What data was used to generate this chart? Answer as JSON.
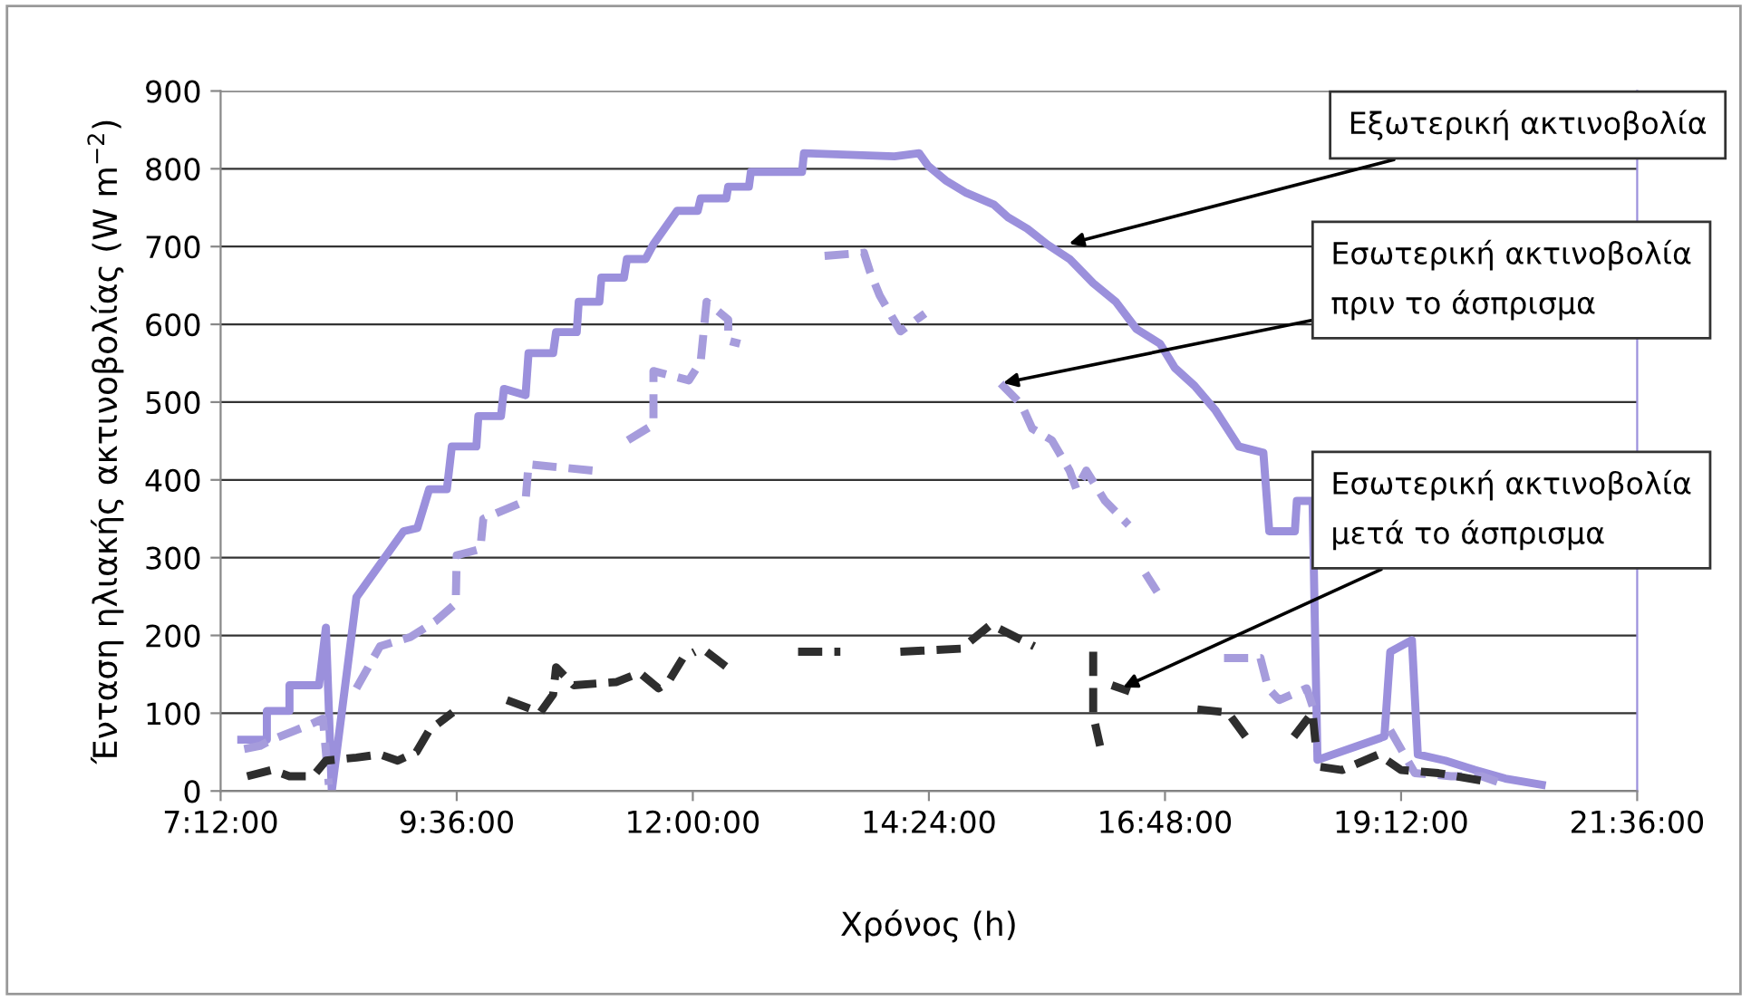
{
  "chart_data": {
    "type": "line",
    "xlabel": "Χρόνος (h)",
    "ylabel": "Ένταση ηλιακής ακτινοβολίας (W m$^{−2}$)",
    "xlim": [
      7.2,
      21.6
    ],
    "xticks": [
      {
        "value": 7.2,
        "label": "7:12:00"
      },
      {
        "value": 9.6,
        "label": "9:36:00"
      },
      {
        "value": 12.0,
        "label": "12:00:00"
      },
      {
        "value": 14.4,
        "label": "14:24:00"
      },
      {
        "value": 16.8,
        "label": "16:48:00"
      },
      {
        "value": 19.2,
        "label": "19:12:00"
      },
      {
        "value": 21.6,
        "label": "21:36:00"
      }
    ],
    "ylim": [
      0,
      900
    ],
    "yticks": [
      0,
      100,
      200,
      300,
      400,
      500,
      600,
      700,
      800,
      900
    ],
    "grid": "y",
    "legend": false,
    "series": [
      {
        "color": "#9b90dc",
        "line_style": "solid",
        "x": [
          7.41,
          7.67,
          7.67,
          7.9,
          7.9,
          8.2,
          8.27,
          8.33,
          8.58,
          9.06,
          9.2,
          9.32,
          9.5,
          9.55,
          9.8,
          9.82,
          10.05,
          10.08,
          10.3,
          10.33,
          10.58,
          10.61,
          10.82,
          10.84,
          11.05,
          11.07,
          11.3,
          11.33,
          11.52,
          11.6,
          11.84,
          12.05,
          12.08,
          12.34,
          12.36,
          12.57,
          12.59,
          13.11,
          13.13,
          14.05,
          14.3,
          14.39,
          14.57,
          14.78,
          15.06,
          15.2,
          15.4,
          15.6,
          15.83,
          16.07,
          16.3,
          16.51,
          16.75,
          16.9,
          17.1,
          17.31,
          17.55,
          17.8,
          17.86,
          18.12,
          18.14,
          18.3,
          18.35,
          19.03,
          19.09,
          19.31,
          19.37,
          19.65,
          19.95,
          20.26,
          20.63
        ],
        "values": [
          66,
          66,
          103,
          103,
          136,
          136,
          210,
          0,
          249,
          334,
          338,
          388,
          388,
          443,
          443,
          482,
          482,
          517,
          509,
          563,
          563,
          590,
          590,
          629,
          629,
          660,
          660,
          684,
          684,
          703,
          746,
          746,
          762,
          762,
          777,
          777,
          796,
          796,
          820,
          816,
          820,
          804,
          785,
          769,
          754,
          738,
          723,
          703,
          684,
          653,
          629,
          594,
          575,
          544,
          521,
          490,
          443,
          435,
          334,
          334,
          373,
          373,
          40,
          70,
          179,
          194,
          47,
          39,
          27,
          16,
          8
        ]
      },
      {
        "color": "#a69cdc",
        "line_style": "dashed",
        "x": [
          7.44,
          7.6,
          7.72,
          7.96,
          8.1,
          8.24,
          8.3,
          8.45,
          8.58,
          8.82,
          9.13,
          9.38,
          9.59,
          9.6,
          9.84,
          9.87,
          10.3,
          10.33,
          10.98,
          11.1,
          11.34,
          11.6,
          11.6,
          11.96,
          12.08,
          12.14,
          12.36,
          12.36,
          12.48,
          12.9,
          13.34,
          13.74,
          13.8,
          13.9,
          14.11,
          14.36,
          14.9,
          15.13,
          15.34,
          15.45,
          15.65,
          15.83,
          15.9,
          16.0,
          16.19,
          16.43,
          16.5,
          16.6,
          16.72,
          17.0,
          17.4,
          17.77,
          17.85,
          17.96,
          18.24,
          18.3,
          18.7,
          19.09,
          19.34,
          19.71,
          20.02,
          20.26
        ],
        "values": [
          54,
          58,
          66,
          78,
          85,
          93,
          8,
          null,
          132,
          186,
          198,
          218,
          241,
          303,
          311,
          350,
          373,
          420,
          412,
          null,
          451,
          471,
          540,
          528,
          552,
          629,
          606,
          579,
          575,
          null,
          688,
          692,
          668,
          637,
          591,
          614,
          null,
          524,
          497,
          466,
          451,
          412,
          388,
          412,
          373,
          342,
          null,
          280,
          256,
          null,
          171,
          171,
          132,
          117,
          132,
          109,
          null,
          78,
          23,
          19,
          19,
          8
        ]
      },
      {
        "color": "#2e2e2e",
        "line_style": "dashed",
        "x": [
          7.47,
          7.72,
          7.9,
          8.14,
          8.27,
          8.58,
          8.82,
          9.0,
          9.19,
          9.32,
          9.56,
          9.8,
          10.11,
          10.45,
          10.58,
          10.61,
          10.79,
          11.22,
          11.46,
          11.65,
          11.75,
          11.9,
          12.02,
          12.08,
          12.14,
          12.39,
          12.7,
          13.07,
          13.5,
          13.8,
          14.11,
          14.73,
          15.03,
          15.47,
          15.8,
          16.07,
          16.07,
          16.07,
          16.14,
          16.2,
          16.26,
          16.44,
          16.8,
          17.13,
          17.44,
          17.62,
          17.9,
          18.11,
          18.3,
          18.33,
          18.36,
          18.38,
          18.6,
          18.97,
          19.2,
          19.58,
          20.08
        ],
        "values": [
          19,
          27,
          19,
          19,
          39,
          43,
          47,
          39,
          50,
          78,
          101,
          null,
          117,
          101,
          124,
          159,
          136,
          140,
          152,
          132,
          140,
          171,
          179,
          null,
          179,
          155,
          null,
          179,
          179,
          null,
          179,
          183,
          214,
          186,
          null,
          179,
          155,
          97,
          58,
          null,
          136,
          128,
          null,
          105,
          101,
          70,
          null,
          70,
          101,
          62,
          null,
          31,
          27,
          47,
          27,
          23,
          12
        ]
      }
    ],
    "annotations": [
      {
        "text": "Εξωτερική ακτινοβολία",
        "x": 15.8,
        "y": 703
      },
      {
        "text": "Εσωτερική ακτινοβολία\nπριν το άσπρισμα",
        "x": 15.13,
        "y": 524
      },
      {
        "text": "Εσωτερική ακτινοβολία\nμετά το άσπρισμα",
        "x": 16.35,
        "y": 132
      }
    ]
  }
}
